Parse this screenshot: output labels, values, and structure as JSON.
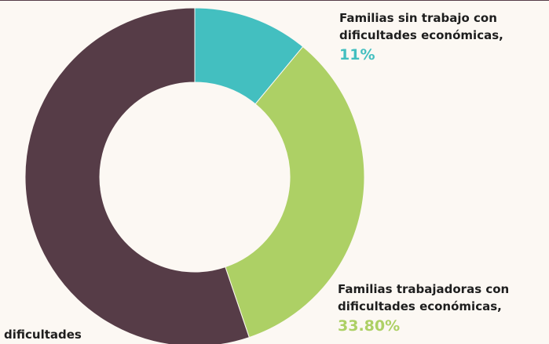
{
  "chart_data": {
    "type": "donut",
    "categories": [
      [
        "Familias sin trabajo con",
        "dificultades económicas,"
      ],
      [
        "Familias trabajadoras con",
        "dificultades económicas,"
      ],
      [
        "dificultades"
      ]
    ],
    "values": [
      11,
      33.8,
      55.2
    ],
    "value_labels": [
      "11%",
      "33.80%",
      null
    ],
    "colors": [
      "#43bfc0",
      "#add065",
      "#563c47"
    ]
  }
}
